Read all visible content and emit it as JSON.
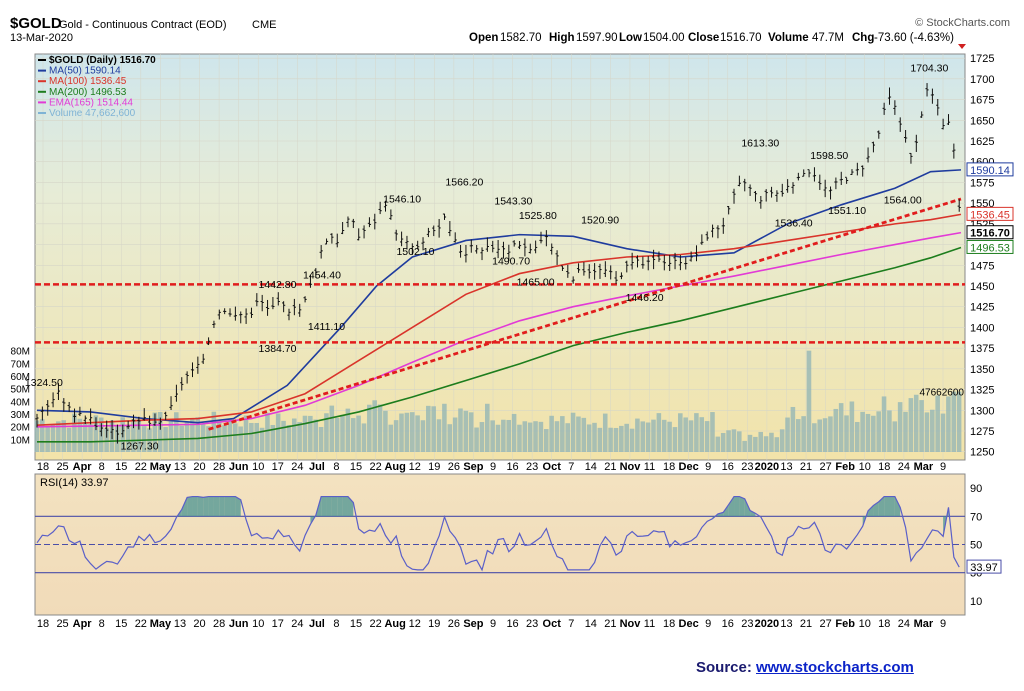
{
  "header": {
    "symbol": "$GOLD",
    "name": "Gold - Continuous Contract (EOD)",
    "exchange": "CME",
    "date": "13-Mar-2020",
    "provider": "© StockCharts.com",
    "open_label": "Open",
    "open": "1582.70",
    "high_label": "High",
    "high": "1597.90",
    "low_label": "Low",
    "low": "1504.00",
    "close_label": "Close",
    "close": "1516.70",
    "volume_label": "Volume",
    "volume": "47.7M",
    "chg_label": "Chg",
    "chg": "-73.60 (-4.63%)"
  },
  "legend": [
    {
      "label": "$GOLD (Daily) 1516.70",
      "color": "#000000"
    },
    {
      "label": "MA(50) 1590.14",
      "color": "#1f3c9e"
    },
    {
      "label": "MA(100) 1536.45",
      "color": "#d9342b"
    },
    {
      "label": "MA(200) 1496.53",
      "color": "#1d7d1d"
    },
    {
      "label": "EMA(165) 1514.44",
      "color": "#e23ad6"
    },
    {
      "label": "Volume 47,662,600",
      "color": "#7fb3d5"
    }
  ],
  "source": {
    "prefix": "Source: ",
    "link": "www.stockcharts.com"
  },
  "rsi_label": "RSI(14) 33.97",
  "chart_data": [
    {
      "type": "line",
      "title": "$GOLD (Daily) 1516.70",
      "ylim": [
        1240,
        1730
      ],
      "y_ticks": [
        1250,
        1275,
        1300,
        1325,
        1350,
        1375,
        1400,
        1425,
        1450,
        1475,
        1500,
        1525,
        1550,
        1575,
        1600,
        1625,
        1650,
        1675,
        1700,
        1725
      ],
      "x_labels": [
        "18",
        "25",
        "Apr",
        "8",
        "15",
        "22",
        "May",
        "13",
        "20",
        "28",
        "Jun",
        "10",
        "17",
        "24",
        "Jul",
        "8",
        "15",
        "22",
        "Aug",
        "12",
        "19",
        "26",
        "Sep",
        "9",
        "16",
        "23",
        "Oct",
        "7",
        "14",
        "21",
        "Nov",
        "11",
        "18",
        "Dec",
        "9",
        "16",
        "23",
        "2020",
        "13",
        "21",
        "27",
        "Feb",
        "10",
        "18",
        "24",
        "Mar",
        "9"
      ],
      "price_series": [
        {
          "i": 0,
          "v": 1292
        },
        {
          "i": 4,
          "v": 1300
        },
        {
          "i": 8,
          "v": 1312
        },
        {
          "i": 12,
          "v": 1320
        },
        {
          "i": 16,
          "v": 1308
        },
        {
          "i": 20,
          "v": 1295
        },
        {
          "i": 24,
          "v": 1298
        },
        {
          "i": 28,
          "v": 1290
        },
        {
          "i": 32,
          "v": 1285
        },
        {
          "i": 36,
          "v": 1278
        },
        {
          "i": 40,
          "v": 1280
        },
        {
          "i": 44,
          "v": 1272
        },
        {
          "i": 48,
          "v": 1278
        },
        {
          "i": 52,
          "v": 1285
        },
        {
          "i": 56,
          "v": 1282
        },
        {
          "i": 60,
          "v": 1290
        },
        {
          "i": 64,
          "v": 1283
        },
        {
          "i": 68,
          "v": 1282
        },
        {
          "i": 72,
          "v": 1295
        },
        {
          "i": 76,
          "v": 1305
        },
        {
          "i": 80,
          "v": 1330
        },
        {
          "i": 84,
          "v": 1342
        },
        {
          "i": 88,
          "v": 1348
        },
        {
          "i": 92,
          "v": 1355
        },
        {
          "i": 96,
          "v": 1385
        },
        {
          "i": 100,
          "v": 1415
        },
        {
          "i": 104,
          "v": 1425
        },
        {
          "i": 108,
          "v": 1418
        },
        {
          "i": 112,
          "v": 1410
        },
        {
          "i": 116,
          "v": 1420
        },
        {
          "i": 120,
          "v": 1415
        },
        {
          "i": 124,
          "v": 1435
        },
        {
          "i": 128,
          "v": 1425
        },
        {
          "i": 132,
          "v": 1422
        },
        {
          "i": 136,
          "v": 1430
        },
        {
          "i": 140,
          "v": 1420
        },
        {
          "i": 144,
          "v": 1428
        },
        {
          "i": 148,
          "v": 1420
        },
        {
          "i": 152,
          "v": 1445
        },
        {
          "i": 156,
          "v": 1470
        },
        {
          "i": 160,
          "v": 1500
        },
        {
          "i": 164,
          "v": 1512
        },
        {
          "i": 168,
          "v": 1505
        },
        {
          "i": 172,
          "v": 1520
        },
        {
          "i": 176,
          "v": 1535
        },
        {
          "i": 180,
          "v": 1510
        },
        {
          "i": 184,
          "v": 1520
        },
        {
          "i": 188,
          "v": 1525
        },
        {
          "i": 192,
          "v": 1540
        },
        {
          "i": 196,
          "v": 1545
        },
        {
          "i": 200,
          "v": 1520
        },
        {
          "i": 204,
          "v": 1505
        },
        {
          "i": 208,
          "v": 1500
        },
        {
          "i": 212,
          "v": 1495
        },
        {
          "i": 216,
          "v": 1500
        },
        {
          "i": 220,
          "v": 1520
        },
        {
          "i": 224,
          "v": 1515
        },
        {
          "i": 228,
          "v": 1530
        },
        {
          "i": 232,
          "v": 1510
        },
        {
          "i": 236,
          "v": 1495
        },
        {
          "i": 240,
          "v": 1490
        },
        {
          "i": 244,
          "v": 1505
        },
        {
          "i": 248,
          "v": 1490
        },
        {
          "i": 252,
          "v": 1500
        },
        {
          "i": 256,
          "v": 1495
        },
        {
          "i": 260,
          "v": 1495
        },
        {
          "i": 264,
          "v": 1490
        },
        {
          "i": 268,
          "v": 1505
        },
        {
          "i": 272,
          "v": 1498
        },
        {
          "i": 276,
          "v": 1495
        },
        {
          "i": 280,
          "v": 1498
        },
        {
          "i": 284,
          "v": 1510
        },
        {
          "i": 288,
          "v": 1500
        },
        {
          "i": 292,
          "v": 1480
        },
        {
          "i": 296,
          "v": 1465
        },
        {
          "i": 300,
          "v": 1458
        },
        {
          "i": 304,
          "v": 1470
        },
        {
          "i": 308,
          "v": 1468
        },
        {
          "i": 312,
          "v": 1465
        },
        {
          "i": 316,
          "v": 1475
        },
        {
          "i": 320,
          "v": 1465
        },
        {
          "i": 324,
          "v": 1460
        },
        {
          "i": 328,
          "v": 1468
        },
        {
          "i": 332,
          "v": 1475
        },
        {
          "i": 336,
          "v": 1478
        },
        {
          "i": 340,
          "v": 1475
        },
        {
          "i": 344,
          "v": 1478
        },
        {
          "i": 348,
          "v": 1485
        },
        {
          "i": 352,
          "v": 1480
        },
        {
          "i": 356,
          "v": 1478
        },
        {
          "i": 360,
          "v": 1482
        },
        {
          "i": 364,
          "v": 1480
        },
        {
          "i": 368,
          "v": 1485
        },
        {
          "i": 372,
          "v": 1500
        },
        {
          "i": 376,
          "v": 1515
        },
        {
          "i": 380,
          "v": 1520
        },
        {
          "i": 384,
          "v": 1525
        },
        {
          "i": 388,
          "v": 1545
        },
        {
          "i": 392,
          "v": 1570
        },
        {
          "i": 396,
          "v": 1575
        },
        {
          "i": 400,
          "v": 1565
        },
        {
          "i": 404,
          "v": 1555
        },
        {
          "i": 408,
          "v": 1560
        },
        {
          "i": 412,
          "v": 1565
        },
        {
          "i": 416,
          "v": 1560
        },
        {
          "i": 420,
          "v": 1570
        },
        {
          "i": 424,
          "v": 1575
        },
        {
          "i": 428,
          "v": 1580
        },
        {
          "i": 432,
          "v": 1590
        },
        {
          "i": 436,
          "v": 1585
        },
        {
          "i": 440,
          "v": 1568
        },
        {
          "i": 444,
          "v": 1565
        },
        {
          "i": 448,
          "v": 1575
        },
        {
          "i": 452,
          "v": 1580
        },
        {
          "i": 456,
          "v": 1585
        },
        {
          "i": 460,
          "v": 1590
        },
        {
          "i": 464,
          "v": 1600
        },
        {
          "i": 468,
          "v": 1620
        },
        {
          "i": 472,
          "v": 1640
        },
        {
          "i": 476,
          "v": 1680
        },
        {
          "i": 480,
          "v": 1665
        },
        {
          "i": 484,
          "v": 1640
        },
        {
          "i": 488,
          "v": 1625
        },
        {
          "i": 490,
          "v": 1585
        },
        {
          "i": 493,
          "v": 1640
        },
        {
          "i": 496,
          "v": 1670
        },
        {
          "i": 499,
          "v": 1690
        },
        {
          "i": 502,
          "v": 1675
        },
        {
          "i": 505,
          "v": 1660
        },
        {
          "i": 508,
          "v": 1640
        },
        {
          "i": 511,
          "v": 1650
        },
        {
          "i": 514,
          "v": 1590
        },
        {
          "i": 517,
          "v": 1516.7
        }
      ],
      "series": [
        {
          "name": "MA(50)",
          "color": "#1f3c9e",
          "values": [
            [
              0,
              1300
            ],
            [
              30,
              1298
            ],
            [
              60,
              1290
            ],
            [
              90,
              1285
            ],
            [
              110,
              1290
            ],
            [
              140,
              1330
            ],
            [
              170,
              1400
            ],
            [
              190,
              1450
            ],
            [
              210,
              1485
            ],
            [
              240,
              1505
            ],
            [
              270,
              1512
            ],
            [
              300,
              1510
            ],
            [
              330,
              1495
            ],
            [
              360,
              1485
            ],
            [
              390,
              1490
            ],
            [
              420,
              1525
            ],
            [
              450,
              1548
            ],
            [
              480,
              1568
            ],
            [
              500,
              1588
            ],
            [
              517,
              1590.14
            ]
          ]
        },
        {
          "name": "MA(100)",
          "color": "#d9342b",
          "values": [
            [
              0,
              1282
            ],
            [
              30,
              1285
            ],
            [
              60,
              1288
            ],
            [
              90,
              1290
            ],
            [
              120,
              1298
            ],
            [
              150,
              1320
            ],
            [
              180,
              1360
            ],
            [
              210,
              1400
            ],
            [
              240,
              1440
            ],
            [
              270,
              1465
            ],
            [
              300,
              1478
            ],
            [
              330,
              1485
            ],
            [
              360,
              1488
            ],
            [
              390,
              1495
            ],
            [
              420,
              1505
            ],
            [
              450,
              1515
            ],
            [
              480,
              1525
            ],
            [
              500,
              1530
            ],
            [
              517,
              1536.45
            ]
          ]
        },
        {
          "name": "MA(200)",
          "color": "#1d7d1d",
          "values": [
            [
              0,
              1262
            ],
            [
              30,
              1262
            ],
            [
              60,
              1264
            ],
            [
              90,
              1266
            ],
            [
              120,
              1272
            ],
            [
              150,
              1284
            ],
            [
              180,
              1298
            ],
            [
              210,
              1316
            ],
            [
              240,
              1336
            ],
            [
              270,
              1356
            ],
            [
              300,
              1378
            ],
            [
              330,
              1394
            ],
            [
              360,
              1408
            ],
            [
              390,
              1424
            ],
            [
              420,
              1440
            ],
            [
              450,
              1456
            ],
            [
              480,
              1472
            ],
            [
              500,
              1484
            ],
            [
              517,
              1496.53
            ]
          ]
        },
        {
          "name": "EMA(165)",
          "color": "#e23ad6",
          "values": [
            [
              0,
              1280
            ],
            [
              30,
              1281
            ],
            [
              60,
              1282
            ],
            [
              90,
              1283
            ],
            [
              120,
              1290
            ],
            [
              150,
              1306
            ],
            [
              180,
              1330
            ],
            [
              210,
              1358
            ],
            [
              240,
              1385
            ],
            [
              270,
              1408
            ],
            [
              300,
              1425
            ],
            [
              330,
              1438
            ],
            [
              360,
              1450
            ],
            [
              390,
              1462
            ],
            [
              420,
              1475
            ],
            [
              450,
              1488
            ],
            [
              480,
              1500
            ],
            [
              500,
              1508
            ],
            [
              517,
              1514.44
            ]
          ]
        }
      ],
      "annotations": [
        {
          "text": "1324.50",
          "i": 8,
          "v": 1324.5
        },
        {
          "text": "1267.30",
          "i": 94,
          "v": 1267.3
        },
        {
          "text": "1442.80",
          "i": 218,
          "v": 1442.8
        },
        {
          "text": "1454.40",
          "i": 258,
          "v": 1454.4
        },
        {
          "text": "1384.70",
          "i": 218,
          "v": 1384.7
        },
        {
          "text": "1411.10",
          "i": 262,
          "v": 1411.1
        },
        {
          "text": "1546.10",
          "i": 330,
          "v": 1546.1
        },
        {
          "text": "1502.10",
          "i": 342,
          "v": 1502.1
        },
        {
          "text": "1566.20",
          "i": 386,
          "v": 1566.2
        },
        {
          "text": "1543.30",
          "i": 430,
          "v": 1543.3
        },
        {
          "text": "1525.80",
          "i": 452,
          "v": 1525.8
        },
        {
          "text": "1490.70",
          "i": 428,
          "v": 1490.7
        },
        {
          "text": "1465.00",
          "i": 450,
          "v": 1465.0
        },
        {
          "text": "1520.90",
          "i": 508,
          "v": 1520.9
        },
        {
          "text": "1446.20",
          "i": 548,
          "v": 1446.2
        },
        {
          "text": "1613.30",
          "i": 652,
          "v": 1613.3
        },
        {
          "text": "1536.40",
          "i": 682,
          "v": 1536.4
        },
        {
          "text": "1598.50",
          "i": 714,
          "v": 1598.5
        },
        {
          "text": "1551.10",
          "i": 730,
          "v": 1551.1
        },
        {
          "text": "1564.00",
          "i": 780,
          "v": 1564.0
        },
        {
          "text": "1704.30",
          "i": 804,
          "v": 1704.3
        }
      ],
      "right_labels": [
        {
          "text": "1590.14",
          "v": 1590.14,
          "color": "#1f3c9e"
        },
        {
          "text": "1536.45",
          "v": 1536.45,
          "color": "#d9342b"
        },
        {
          "text": "1516.70",
          "v": 1516.7,
          "color": "#000000"
        },
        {
          "text": "1496.53",
          "v": 1496.53,
          "color": "#1d7d1d"
        }
      ],
      "horizontal_lines": [
        1452,
        1382
      ],
      "trendline": [
        [
          96,
          1277
        ],
        [
          517,
          1555
        ]
      ]
    },
    {
      "type": "bar",
      "title": "Volume 47,662,600",
      "ylim": [
        0,
        90
      ],
      "y_ticks_left": [
        "10M",
        "20M",
        "30M",
        "40M",
        "50M",
        "60M",
        "70M",
        "80M"
      ],
      "last_label": "47662600"
    },
    {
      "type": "line",
      "title": "RSI(14) 33.97",
      "ylim": [
        0,
        100
      ],
      "y_ticks": [
        10,
        30,
        50,
        70,
        90
      ],
      "last_value": "33.97",
      "levels": [
        70,
        50,
        30
      ]
    }
  ]
}
